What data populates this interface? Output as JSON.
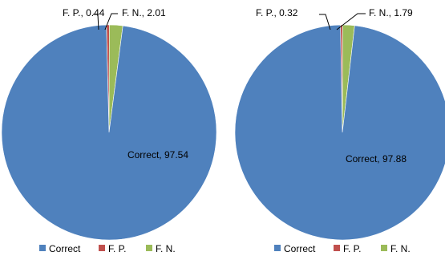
{
  "chart_data": [
    {
      "type": "pie",
      "slices": [
        {
          "label": "Correct",
          "value": 97.54,
          "color": "#4F81BD"
        },
        {
          "label": "F. P.",
          "value": 0.44,
          "color": "#C0504D"
        },
        {
          "label": "F. N.",
          "value": 2.01,
          "color": "#9BBB59"
        }
      ],
      "data_labels": [
        "Correct, 97.54",
        "F. P., 0.44",
        "F. N., 2.01"
      ],
      "legend": [
        "Correct",
        "F. P.",
        "F. N."
      ],
      "legend_position": "bottom"
    },
    {
      "type": "pie",
      "slices": [
        {
          "label": "Correct",
          "value": 97.88,
          "color": "#4F81BD"
        },
        {
          "label": "F. P.",
          "value": 0.32,
          "color": "#C0504D"
        },
        {
          "label": "F. N.",
          "value": 1.79,
          "color": "#9BBB59"
        }
      ],
      "data_labels": [
        "Correct, 97.88",
        "F. P., 0.32",
        "F. N., 1.79"
      ],
      "legend": [
        "Correct",
        "F. P.",
        "F. N."
      ],
      "legend_position": "bottom"
    }
  ]
}
